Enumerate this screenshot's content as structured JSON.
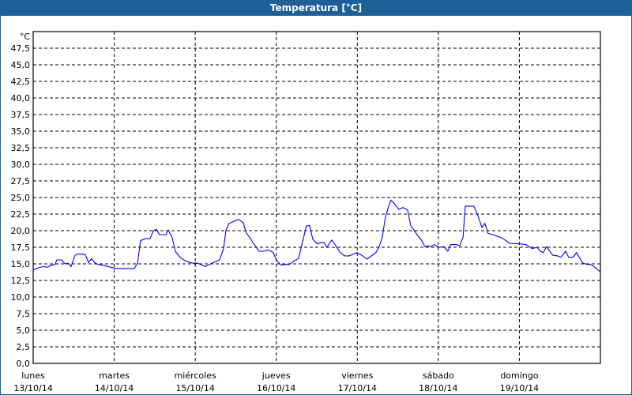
{
  "window": {
    "title": "Temperatura [°C]"
  },
  "chart_data": {
    "type": "line",
    "title": "Temperatura [°C]",
    "ylabel": "°C",
    "ylim": [
      0,
      50
    ],
    "yticks": [
      "0,0",
      "2,5",
      "5,0",
      "7,5",
      "10,0",
      "12,5",
      "15,0",
      "17,5",
      "20,0",
      "22,5",
      "25,0",
      "27,5",
      "30,0",
      "32,5",
      "35,0",
      "37,5",
      "40,0",
      "42,5",
      "45,0",
      "47,5"
    ],
    "xlim_hours": [
      0,
      168
    ],
    "xticks": [
      {
        "day": "lunes",
        "date": "13/10/14"
      },
      {
        "day": "martes",
        "date": "14/10/14"
      },
      {
        "day": "miércoles",
        "date": "15/10/14"
      },
      {
        "day": "jueves",
        "date": "16/10/14"
      },
      {
        "day": "viernes",
        "date": "17/10/14"
      },
      {
        "day": "sábado",
        "date": "18/10/14"
      },
      {
        "day": "domingo",
        "date": "19/10/14"
      }
    ],
    "grid": true,
    "series": [
      {
        "name": "Temperatura",
        "color": "#0000ff",
        "points": [
          [
            0,
            14.0
          ],
          [
            0.9,
            14.3
          ],
          [
            3.0,
            14.6
          ],
          [
            4.2,
            14.5
          ],
          [
            5.4,
            14.8
          ],
          [
            6.5,
            14.9
          ],
          [
            7.0,
            15.6
          ],
          [
            8.4,
            15.6
          ],
          [
            9.4,
            15.0
          ],
          [
            10.3,
            15.1
          ],
          [
            11.2,
            14.6
          ],
          [
            12.4,
            16.3
          ],
          [
            13.3,
            16.5
          ],
          [
            15.4,
            16.4
          ],
          [
            16.4,
            15.2
          ],
          [
            17.3,
            15.8
          ],
          [
            18.2,
            15.2
          ],
          [
            19.2,
            14.9
          ],
          [
            20.6,
            14.8
          ],
          [
            22.9,
            14.5
          ],
          [
            24.8,
            14.3
          ],
          [
            26.7,
            14.3
          ],
          [
            29.9,
            14.3
          ],
          [
            30.9,
            15.1
          ],
          [
            31.8,
            18.5
          ],
          [
            33.2,
            18.8
          ],
          [
            34.6,
            18.8
          ],
          [
            35.6,
            20.0
          ],
          [
            36.5,
            20.2
          ],
          [
            37.4,
            19.4
          ],
          [
            39.3,
            19.4
          ],
          [
            40.0,
            20.1
          ],
          [
            41.2,
            18.9
          ],
          [
            42.1,
            16.9
          ],
          [
            43.5,
            16.0
          ],
          [
            44.9,
            15.5
          ],
          [
            46.3,
            15.2
          ],
          [
            47.7,
            15.1
          ],
          [
            48.7,
            15.1
          ],
          [
            50.1,
            14.8
          ],
          [
            51.0,
            14.6
          ],
          [
            52.9,
            15.1
          ],
          [
            54.3,
            15.4
          ],
          [
            55.2,
            15.6
          ],
          [
            56.4,
            17.3
          ],
          [
            57.1,
            20.1
          ],
          [
            58.0,
            21.1
          ],
          [
            59.4,
            21.4
          ],
          [
            60.8,
            21.7
          ],
          [
            62.2,
            21.2
          ],
          [
            63.2,
            19.6
          ],
          [
            64.1,
            19.0
          ],
          [
            65.5,
            17.9
          ],
          [
            66.9,
            16.9
          ],
          [
            68.3,
            16.9
          ],
          [
            69.7,
            17.1
          ],
          [
            71.1,
            16.7
          ],
          [
            72.0,
            15.6
          ],
          [
            73.4,
            14.8
          ],
          [
            74.4,
            14.9
          ],
          [
            75.8,
            14.9
          ],
          [
            77.2,
            15.4
          ],
          [
            78.6,
            15.8
          ],
          [
            80.9,
            20.7
          ],
          [
            81.9,
            20.8
          ],
          [
            82.8,
            18.7
          ],
          [
            84.2,
            18.0
          ],
          [
            85.1,
            18.2
          ],
          [
            86.1,
            18.2
          ],
          [
            87.0,
            17.5
          ],
          [
            88.4,
            18.6
          ],
          [
            89.4,
            17.9
          ],
          [
            90.8,
            16.8
          ],
          [
            92.2,
            16.2
          ],
          [
            93.6,
            16.2
          ],
          [
            95.9,
            16.7
          ],
          [
            97.3,
            16.3
          ],
          [
            98.9,
            15.7
          ],
          [
            101.5,
            16.7
          ],
          [
            102.5,
            17.6
          ],
          [
            103.4,
            19.0
          ],
          [
            104.3,
            22.0
          ],
          [
            105.3,
            23.7
          ],
          [
            106.0,
            24.6
          ],
          [
            107.1,
            24.0
          ],
          [
            108.3,
            23.2
          ],
          [
            109.5,
            23.5
          ],
          [
            110.9,
            23.1
          ],
          [
            111.8,
            20.8
          ],
          [
            113.7,
            19.4
          ],
          [
            115.1,
            18.5
          ],
          [
            116.0,
            17.6
          ],
          [
            117.0,
            17.7
          ],
          [
            117.9,
            17.6
          ],
          [
            118.8,
            17.9
          ],
          [
            120.2,
            17.5
          ],
          [
            121.6,
            17.6
          ],
          [
            122.8,
            16.9
          ],
          [
            123.7,
            17.9
          ],
          [
            125.4,
            17.9
          ],
          [
            126.3,
            17.7
          ],
          [
            127.3,
            19.0
          ],
          [
            128.0,
            23.7
          ],
          [
            130.5,
            23.7
          ],
          [
            131.5,
            22.6
          ],
          [
            132.9,
            20.5
          ],
          [
            133.8,
            21.1
          ],
          [
            134.7,
            19.6
          ],
          [
            136.1,
            19.4
          ],
          [
            138.9,
            18.9
          ],
          [
            141.1,
            18.1
          ],
          [
            144.6,
            18.0
          ],
          [
            146.0,
            17.9
          ],
          [
            146.9,
            17.6
          ],
          [
            147.8,
            17.3
          ],
          [
            149.2,
            17.5
          ],
          [
            150.2,
            16.9
          ],
          [
            151.1,
            16.7
          ],
          [
            152.0,
            17.6
          ],
          [
            153.9,
            16.3
          ],
          [
            155.3,
            16.2
          ],
          [
            156.3,
            16.0
          ],
          [
            157.7,
            16.9
          ],
          [
            158.6,
            16.0
          ],
          [
            160.0,
            16.0
          ],
          [
            160.9,
            16.7
          ],
          [
            162.8,
            15.1
          ],
          [
            164.2,
            14.9
          ],
          [
            165.1,
            14.9
          ],
          [
            166.1,
            14.6
          ],
          [
            167.0,
            14.2
          ],
          [
            168.0,
            13.8
          ]
        ]
      }
    ]
  }
}
